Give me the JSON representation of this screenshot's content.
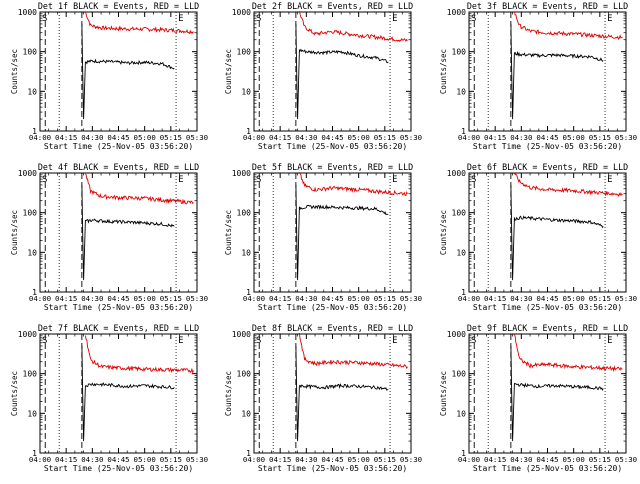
{
  "colors": {
    "events": "#000000",
    "lld": "#e00000",
    "axis": "#000000",
    "background": "#ffffff"
  },
  "chart_data": [
    {
      "type": "line",
      "title": "Det 1f BLACK = Events, RED = LLD",
      "xlabel": "Start Time (25-Nov-05 03:56:20)",
      "ylabel": "Counts/sec",
      "yscale": "log",
      "ylim": [
        1,
        1000
      ],
      "xlim": [
        "04:00",
        "05:30"
      ],
      "xticks": [
        "04:00",
        "04:15",
        "04:30",
        "04:45",
        "05:00",
        "05:15",
        "05:30"
      ],
      "yticks": [
        "1",
        "10",
        "100",
        "1000"
      ],
      "markers": [
        "S",
        "E"
      ],
      "series": [
        {
          "color": "#e00000",
          "x": [
            "04:26",
            "04:29",
            "04:35",
            "04:45",
            "05:00",
            "05:15",
            "05:28"
          ],
          "values": [
            1000,
            460,
            400,
            380,
            370,
            350,
            320
          ]
        },
        {
          "color": "#000000",
          "x": [
            "04:24",
            "04:25",
            "04:26",
            "04:30",
            "04:40",
            "04:50",
            "05:00",
            "05:10",
            "05:17"
          ],
          "values": [
            500,
            2,
            55,
            58,
            56,
            52,
            54,
            50,
            38
          ]
        }
      ]
    },
    {
      "type": "line",
      "title": "Det 2f BLACK = Events, RED = LLD",
      "xlabel": "Start Time (25-Nov-05 03:56:20)",
      "ylabel": "Counts/sec",
      "yscale": "log",
      "ylim": [
        1,
        1000
      ],
      "xlim": [
        "04:00",
        "05:30"
      ],
      "xticks": [
        "04:00",
        "04:15",
        "04:30",
        "04:45",
        "05:00",
        "05:15",
        "05:30"
      ],
      "yticks": [
        "1",
        "10",
        "100",
        "1000"
      ],
      "markers": [
        "S",
        "E"
      ],
      "series": [
        {
          "color": "#e00000",
          "x": [
            "04:26",
            "04:29",
            "04:35",
            "04:45",
            "05:00",
            "05:15",
            "05:28"
          ],
          "values": [
            1000,
            420,
            280,
            320,
            260,
            220,
            190
          ]
        },
        {
          "color": "#000000",
          "x": [
            "04:24",
            "04:25",
            "04:26",
            "04:30",
            "04:40",
            "04:50",
            "05:00",
            "05:10",
            "05:17"
          ],
          "values": [
            500,
            2,
            110,
            100,
            95,
            100,
            80,
            70,
            55
          ]
        }
      ]
    },
    {
      "type": "line",
      "title": "Det 3f BLACK = Events, RED = LLD",
      "xlabel": "Start Time (25-Nov-05 03:56:20)",
      "ylabel": "Counts/sec",
      "yscale": "log",
      "ylim": [
        1,
        1000
      ],
      "xlim": [
        "04:00",
        "05:30"
      ],
      "xticks": [
        "04:00",
        "04:15",
        "04:30",
        "04:45",
        "05:00",
        "05:15",
        "05:30"
      ],
      "yticks": [
        "1",
        "10",
        "100",
        "1000"
      ],
      "markers": [
        "S",
        "E"
      ],
      "series": [
        {
          "color": "#e00000",
          "x": [
            "04:26",
            "04:29",
            "04:35",
            "04:45",
            "05:00",
            "05:15",
            "05:28"
          ],
          "values": [
            1000,
            450,
            330,
            300,
            280,
            250,
            230
          ]
        },
        {
          "color": "#000000",
          "x": [
            "04:24",
            "04:25",
            "04:26",
            "04:30",
            "04:40",
            "04:50",
            "05:00",
            "05:10",
            "05:17"
          ],
          "values": [
            500,
            2,
            90,
            85,
            80,
            82,
            78,
            75,
            60
          ]
        }
      ]
    },
    {
      "type": "line",
      "title": "Det 4f BLACK = Events, RED = LLD",
      "xlabel": "Start Time (25-Nov-05 03:56:20)",
      "ylabel": "Counts/sec",
      "yscale": "log",
      "ylim": [
        1,
        1000
      ],
      "xlim": [
        "04:00",
        "05:30"
      ],
      "xticks": [
        "04:00",
        "04:15",
        "04:30",
        "04:45",
        "05:00",
        "05:15",
        "05:30"
      ],
      "yticks": [
        "1",
        "10",
        "100",
        "1000"
      ],
      "markers": [
        "S",
        "E"
      ],
      "series": [
        {
          "color": "#e00000",
          "x": [
            "04:26",
            "04:29",
            "04:35",
            "04:45",
            "05:00",
            "05:15",
            "05:28"
          ],
          "values": [
            1000,
            350,
            260,
            240,
            230,
            200,
            180
          ]
        },
        {
          "color": "#000000",
          "x": [
            "04:24",
            "04:25",
            "04:26",
            "04:30",
            "04:40",
            "04:50",
            "05:00",
            "05:10",
            "05:17"
          ],
          "values": [
            500,
            2,
            60,
            65,
            60,
            58,
            55,
            52,
            45
          ]
        }
      ]
    },
    {
      "type": "line",
      "title": "Det 5f BLACK = Events, RED = LLD",
      "xlabel": "Start Time (25-Nov-05 03:56:20)",
      "ylabel": "Counts/sec",
      "yscale": "log",
      "ylim": [
        1,
        1000
      ],
      "xlim": [
        "04:00",
        "05:30"
      ],
      "xticks": [
        "04:00",
        "04:15",
        "04:30",
        "04:45",
        "05:00",
        "05:15",
        "05:30"
      ],
      "yticks": [
        "1",
        "10",
        "100",
        "1000"
      ],
      "markers": [
        "S",
        "E"
      ],
      "series": [
        {
          "color": "#e00000",
          "x": [
            "04:26",
            "04:29",
            "04:35",
            "04:45",
            "05:00",
            "05:15",
            "05:28"
          ],
          "values": [
            1000,
            480,
            380,
            420,
            380,
            330,
            300
          ]
        },
        {
          "color": "#000000",
          "x": [
            "04:24",
            "04:25",
            "04:26",
            "04:30",
            "04:40",
            "04:50",
            "05:00",
            "05:10",
            "05:17"
          ],
          "values": [
            500,
            2,
            130,
            140,
            140,
            135,
            130,
            125,
            90
          ]
        }
      ]
    },
    {
      "type": "line",
      "title": "Det 6f BLACK = Events, RED = LLD",
      "xlabel": "Start Time (25-Nov-05 03:56:20)",
      "ylabel": "Counts/sec",
      "yscale": "log",
      "ylim": [
        1,
        1000
      ],
      "xlim": [
        "04:00",
        "05:30"
      ],
      "xticks": [
        "04:00",
        "04:15",
        "04:30",
        "04:45",
        "05:00",
        "05:15",
        "05:30"
      ],
      "yticks": [
        "1",
        "10",
        "100",
        "1000"
      ],
      "markers": [
        "S",
        "E"
      ],
      "series": [
        {
          "color": "#e00000",
          "x": [
            "04:26",
            "04:29",
            "04:35",
            "04:45",
            "05:00",
            "05:15",
            "05:28"
          ],
          "values": [
            1000,
            600,
            430,
            380,
            360,
            320,
            290
          ]
        },
        {
          "color": "#000000",
          "x": [
            "04:24",
            "04:25",
            "04:26",
            "04:30",
            "04:40",
            "04:50",
            "05:00",
            "05:10",
            "05:17"
          ],
          "values": [
            500,
            2,
            70,
            75,
            70,
            65,
            62,
            58,
            45
          ]
        }
      ]
    },
    {
      "type": "line",
      "title": "Det 7f BLACK = Events, RED = LLD",
      "xlabel": "Start Time (25-Nov-05 03:56:20)",
      "ylabel": "Counts/sec",
      "yscale": "log",
      "ylim": [
        1,
        1000
      ],
      "xlim": [
        "04:00",
        "05:30"
      ],
      "xticks": [
        "04:00",
        "04:15",
        "04:30",
        "04:45",
        "05:00",
        "05:15",
        "05:30"
      ],
      "yticks": [
        "1",
        "10",
        "100",
        "1000"
      ],
      "markers": [
        "S",
        "E"
      ],
      "series": [
        {
          "color": "#e00000",
          "x": [
            "04:26",
            "04:29",
            "04:35",
            "04:45",
            "05:00",
            "05:15",
            "05:28"
          ],
          "values": [
            1000,
            220,
            150,
            140,
            130,
            125,
            120
          ]
        },
        {
          "color": "#000000",
          "x": [
            "04:24",
            "04:25",
            "04:26",
            "04:30",
            "04:40",
            "04:50",
            "05:00",
            "05:10",
            "05:17"
          ],
          "values": [
            500,
            2,
            50,
            55,
            52,
            48,
            50,
            47,
            45
          ]
        }
      ]
    },
    {
      "type": "line",
      "title": "Det 8f BLACK = Events, RED = LLD",
      "xlabel": "Start Time (25-Nov-05 03:56:20)",
      "ylabel": "Counts/sec",
      "yscale": "log",
      "ylim": [
        1,
        1000
      ],
      "xlim": [
        "04:00",
        "05:30"
      ],
      "xticks": [
        "04:00",
        "04:15",
        "04:30",
        "04:45",
        "05:00",
        "05:15",
        "05:30"
      ],
      "yticks": [
        "1",
        "10",
        "100",
        "1000"
      ],
      "markers": [
        "S",
        "E"
      ],
      "series": [
        {
          "color": "#e00000",
          "x": [
            "04:26",
            "04:29",
            "04:35",
            "04:45",
            "05:00",
            "05:15",
            "05:28"
          ],
          "values": [
            1000,
            230,
            180,
            200,
            190,
            170,
            150
          ]
        },
        {
          "color": "#000000",
          "x": [
            "04:24",
            "04:25",
            "04:26",
            "04:30",
            "04:40",
            "04:50",
            "05:00",
            "05:10",
            "05:17"
          ],
          "values": [
            500,
            2,
            50,
            48,
            45,
            50,
            48,
            45,
            40
          ]
        }
      ]
    },
    {
      "type": "line",
      "title": "Det 9f BLACK = Events, RED = LLD",
      "xlabel": "Start Time (25-Nov-05 03:56:20)",
      "ylabel": "Counts/sec",
      "yscale": "log",
      "ylim": [
        1,
        1000
      ],
      "xlim": [
        "04:00",
        "05:30"
      ],
      "xticks": [
        "04:00",
        "04:15",
        "04:30",
        "04:45",
        "05:00",
        "05:15",
        "05:30"
      ],
      "yticks": [
        "1",
        "10",
        "100",
        "1000"
      ],
      "markers": [
        "S",
        "E"
      ],
      "series": [
        {
          "color": "#e00000",
          "x": [
            "04:26",
            "04:29",
            "04:35",
            "04:45",
            "05:00",
            "05:15",
            "05:28"
          ],
          "values": [
            1000,
            230,
            160,
            170,
            150,
            140,
            130
          ]
        },
        {
          "color": "#000000",
          "x": [
            "04:24",
            "04:25",
            "04:26",
            "04:30",
            "04:40",
            "04:50",
            "05:00",
            "05:10",
            "05:17"
          ],
          "values": [
            500,
            2,
            55,
            52,
            48,
            50,
            47,
            45,
            42
          ]
        }
      ]
    }
  ]
}
